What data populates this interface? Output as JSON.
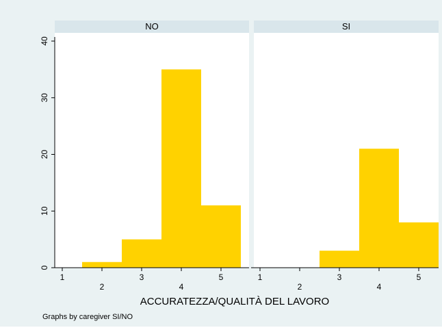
{
  "chart_data": {
    "type": "bar",
    "xlabel": "ACCURATEZZA/QUALITÀ DEL LAVORO",
    "note": "Graphs by caregiver SI/NO",
    "ylim": [
      0,
      40
    ],
    "yticks": [
      0,
      10,
      20,
      30,
      40
    ],
    "xlim": [
      0.85,
      5.5
    ],
    "xticks": [
      1,
      2,
      3,
      4,
      5
    ],
    "bar_width": 1,
    "panels": [
      {
        "title": "NO",
        "x": [
          2,
          3,
          4,
          5
        ],
        "values": [
          1,
          5,
          35,
          11
        ]
      },
      {
        "title": "SI",
        "x": [
          2,
          3,
          4,
          5
        ],
        "values": [
          0,
          3,
          21,
          8
        ]
      }
    ],
    "colors": {
      "outer_background": "#eaf2f3",
      "plot_background": "#ffffff",
      "strip_background": "#d9e6eb",
      "bar_fill": "#ffd200",
      "axis": "#000000"
    },
    "grid": false
  }
}
